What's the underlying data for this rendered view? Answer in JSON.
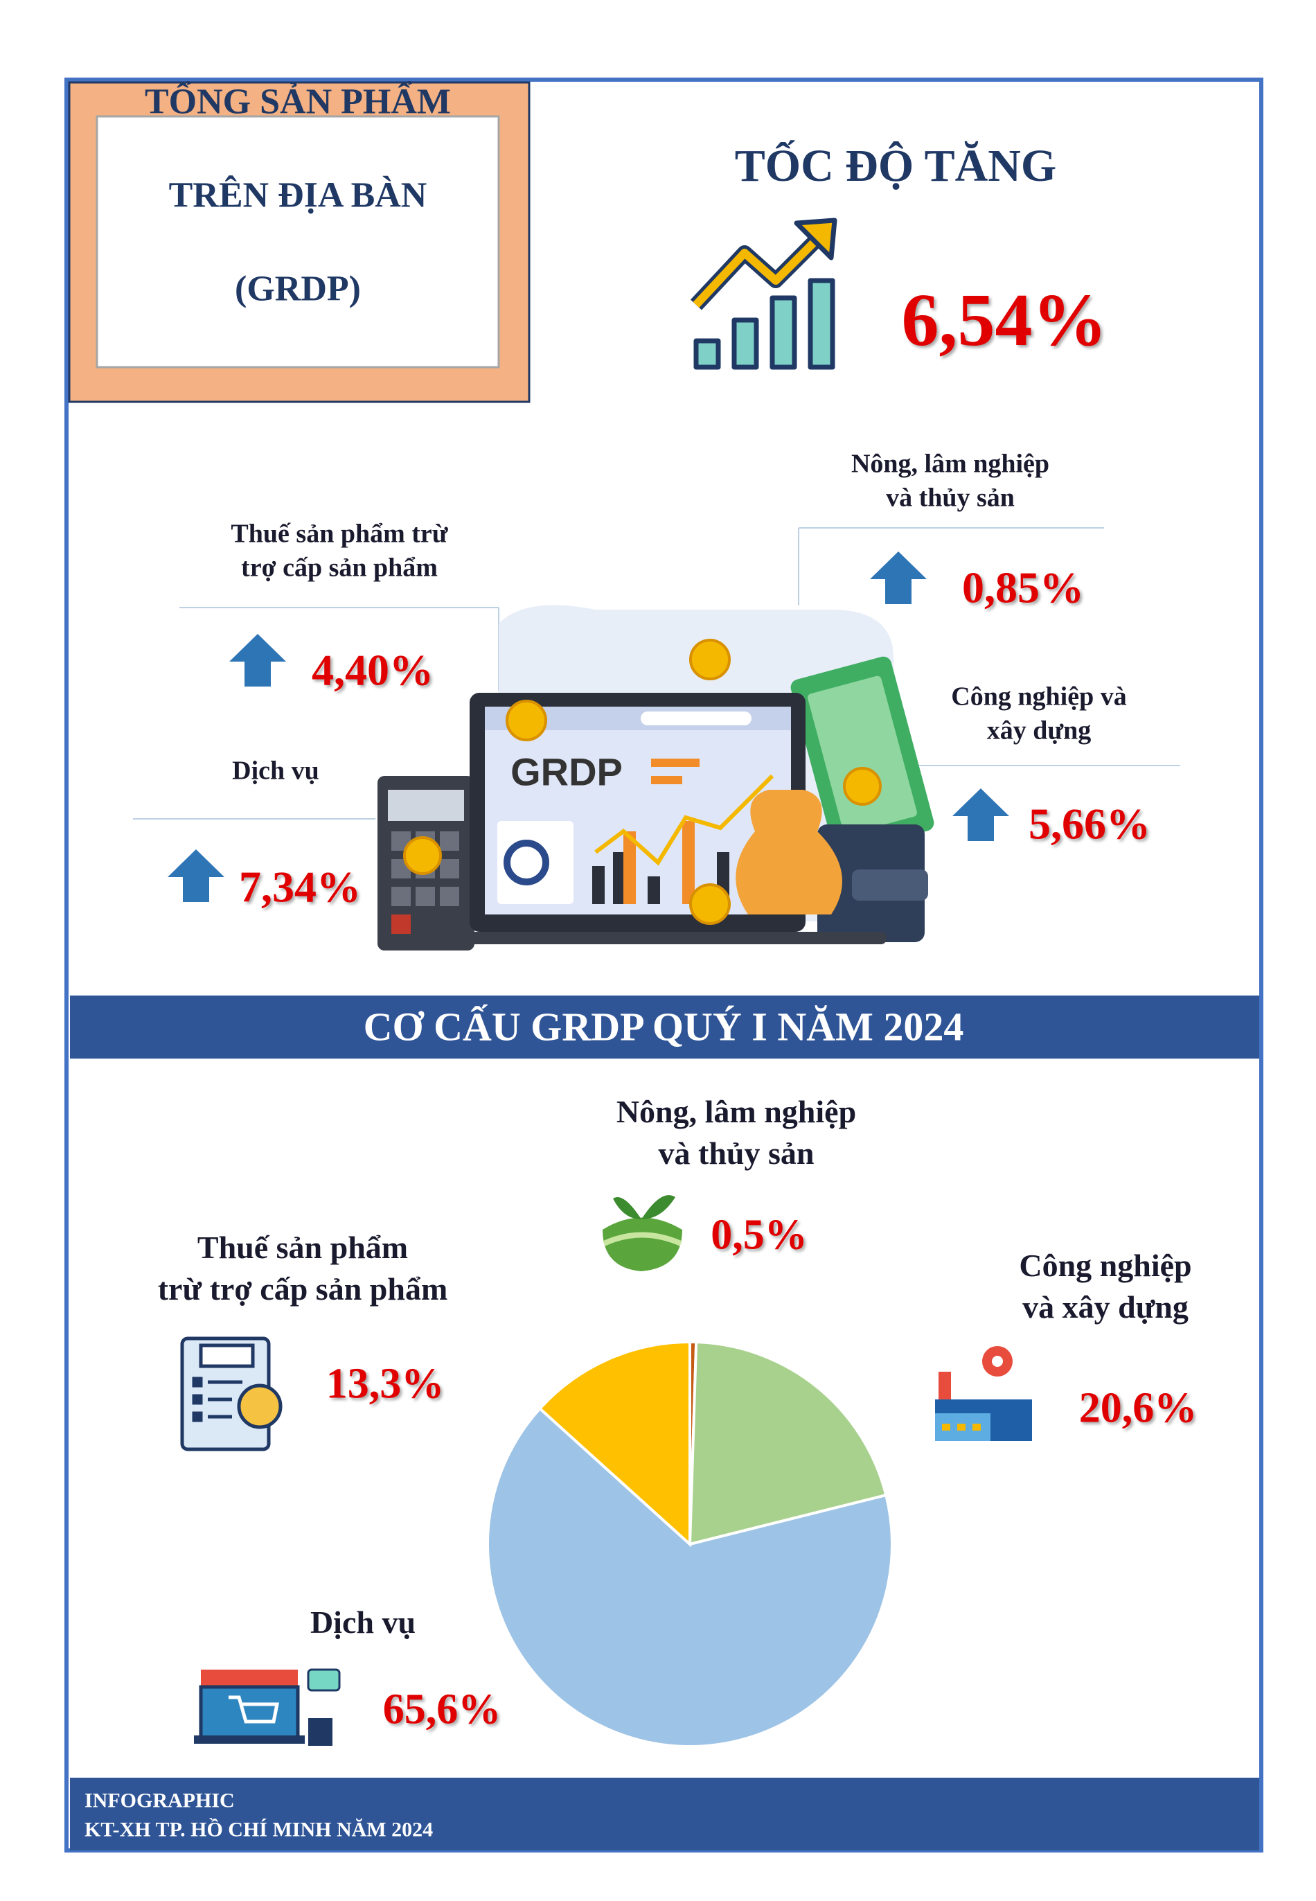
{
  "header": {
    "title": [
      "TỔNG SẢN PHẨM",
      "TRÊN ĐỊA BÀN",
      "(GRDP)"
    ]
  },
  "growth": {
    "title": "TỐC ĐỘ TĂNG",
    "value": "6,54%",
    "illustration_label": "GRDP",
    "sectors": [
      {
        "name": "Nông, lâm nghiệp\nvà thủy sản",
        "value": "0,85%"
      },
      {
        "name": "Thuế sản phẩm trừ\ntrợ cấp sản phẩm",
        "value": "4,40%"
      },
      {
        "name": "Dịch vụ",
        "value": "7,34%"
      },
      {
        "name": "Công nghiệp và\nxây dựng",
        "value": "5,66%"
      }
    ]
  },
  "chart_data": {
    "type": "pie",
    "title": "CƠ CẤU GRDP QUÝ I NĂM 2024",
    "categories": [
      "Nông, lâm nghiệp\nvà thủy sản",
      "Công nghiệp\nvà xây dựng",
      "Dịch vụ",
      "Thuế sản phẩm\ntrừ trợ cấp sản phẩm"
    ],
    "values": [
      0.5,
      20.6,
      65.6,
      13.3
    ],
    "value_labels": [
      "0,5%",
      "20,6%",
      "65,6%",
      "13,3%"
    ],
    "colors": [
      "#c55a11",
      "#a9d18e",
      "#9dc3e6",
      "#ffc000"
    ]
  },
  "footer": {
    "lines": [
      "INFOGRAPHIC",
      "KT-XH TP. HỒ CHÍ MINH NĂM 2024"
    ]
  }
}
